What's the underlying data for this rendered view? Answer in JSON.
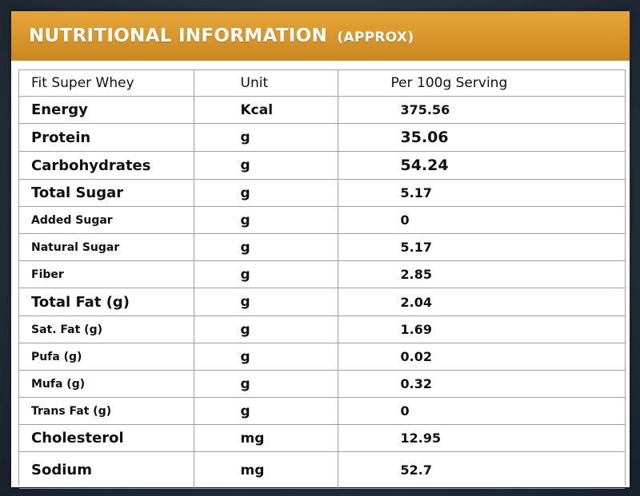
{
  "banner": {
    "title": "NUTRITIONAL INFORMATION",
    "subtitle": "(APPROX)"
  },
  "table": {
    "headers": [
      "Fit Super Whey",
      "Unit",
      "Per 100g  Serving"
    ],
    "rows": [
      {
        "name": "Energy",
        "unit": "Kcal",
        "value": "375.56"
      },
      {
        "name": "Protein",
        "unit": "g",
        "value": "35.06"
      },
      {
        "name": "Carbohydrates",
        "unit": "g",
        "value": "54.24"
      },
      {
        "name": "Total Sugar",
        "unit": "g",
        "value": "5.17"
      },
      {
        "name": "Added Sugar",
        "unit": "g",
        "value": "0"
      },
      {
        "name": "Natural Sugar",
        "unit": "g",
        "value": "5.17"
      },
      {
        "name": "Fiber",
        "unit": "g",
        "value": "2.85"
      },
      {
        "name": "Total Fat (g)",
        "unit": "g",
        "value": "2.04"
      },
      {
        "name": "Sat. Fat (g)",
        "unit": "g",
        "value": "1.69"
      },
      {
        "name": "Pufa (g)",
        "unit": "g",
        "value": "0.02"
      },
      {
        "name": "Mufa (g)",
        "unit": "g",
        "value": "0.32"
      },
      {
        "name": "Trans Fat (g)",
        "unit": "g",
        "value": "0"
      },
      {
        "name": "Cholesterol",
        "unit": "mg",
        "value": "12.95"
      },
      {
        "name": "Sodium",
        "unit": "mg",
        "value": "52.7"
      }
    ]
  },
  "colors": {
    "banner": "#d9952a",
    "background": "#25313d",
    "grid": "#9aa0a6"
  }
}
